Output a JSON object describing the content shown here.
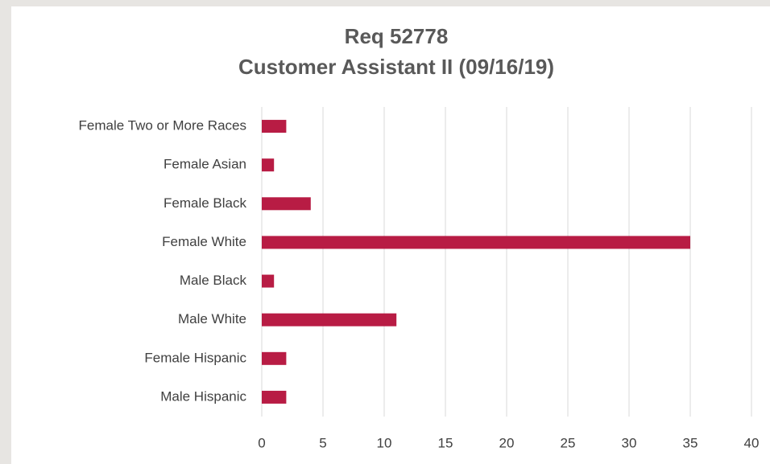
{
  "chart_data": {
    "type": "barh",
    "title": "Req 52778",
    "subtitle": "Customer Assistant II (09/16/19)",
    "categories": [
      "Female Two or More Races",
      "Female Asian",
      "Female Black",
      "Female White",
      "Male Black",
      "Male White",
      "Female Hispanic",
      "Male Hispanic"
    ],
    "values": [
      2,
      1,
      4,
      35,
      1,
      11,
      2,
      2
    ],
    "color": "#b81c44",
    "xlim": [
      0,
      40
    ],
    "xticks": [
      0,
      5,
      10,
      15,
      20,
      25,
      30,
      35,
      40
    ],
    "grid": true
  }
}
